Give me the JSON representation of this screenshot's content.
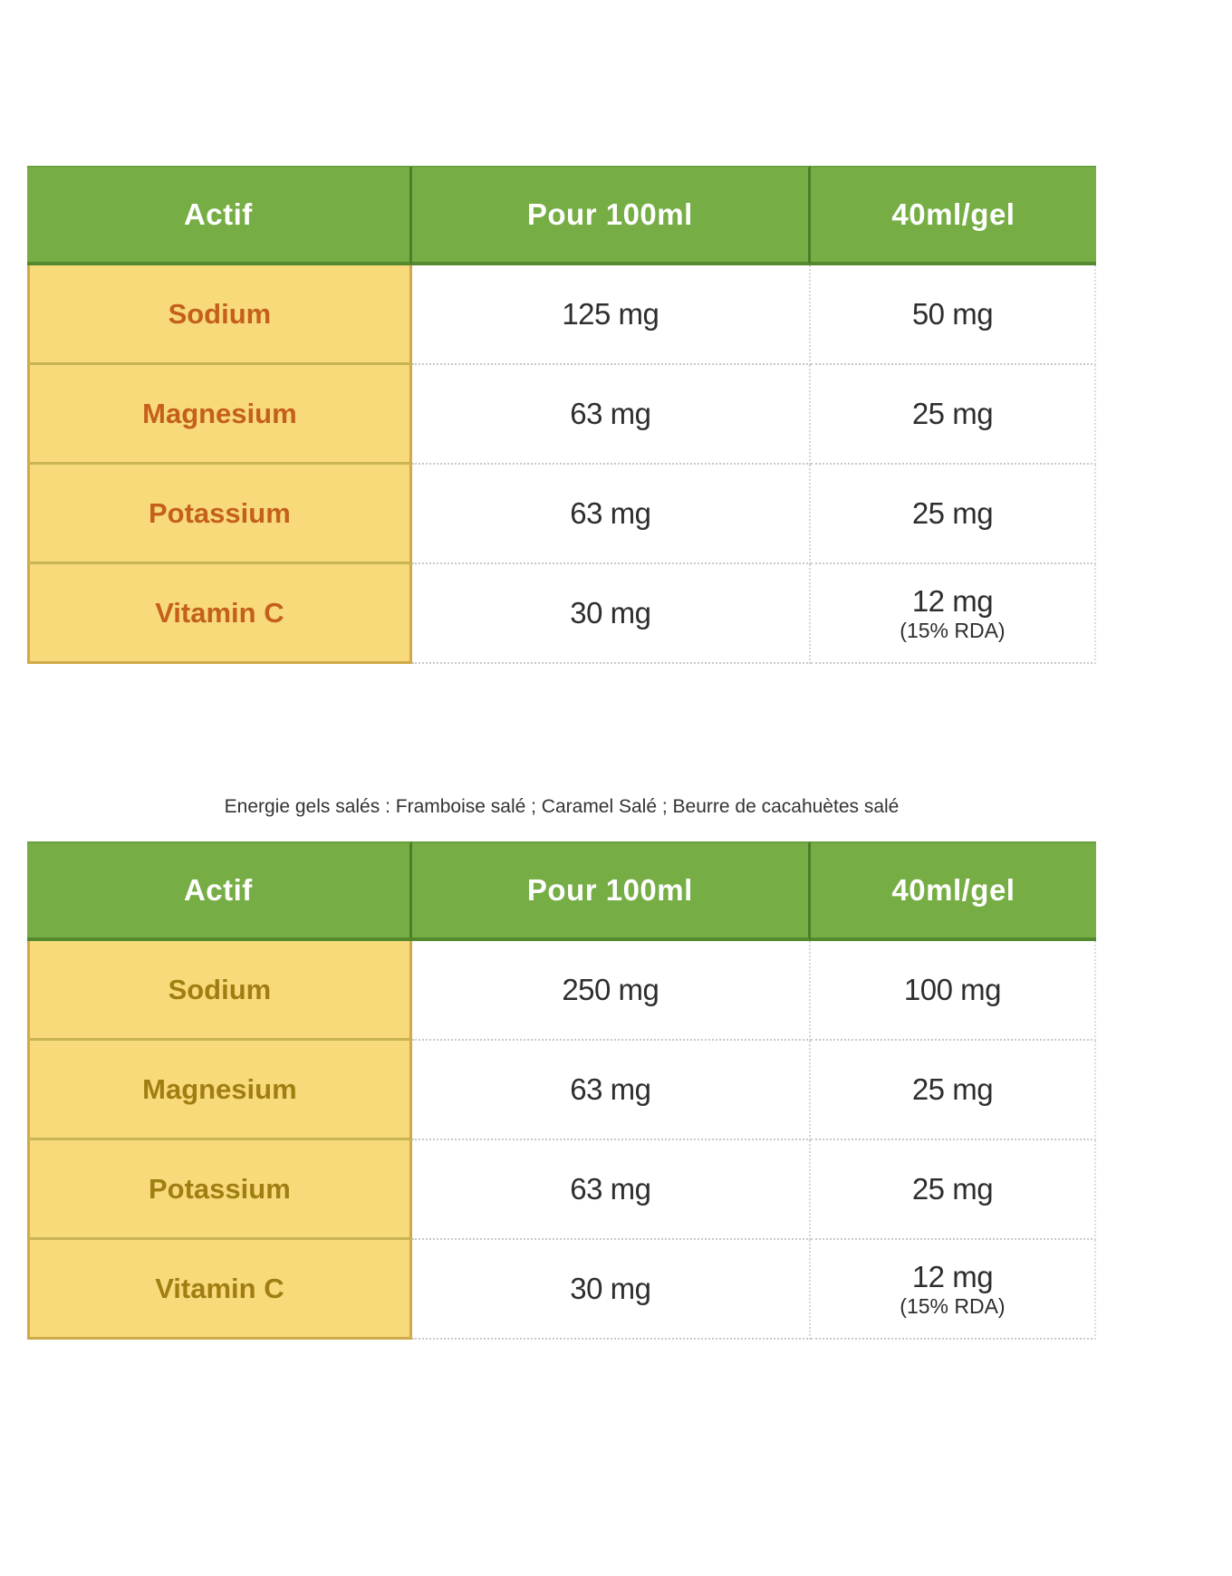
{
  "caption": "Energie gels salés : Framboise salé ; Caramel Salé ; Beurre de cacahuètes salé",
  "colors": {
    "header_bg": "#76ae45",
    "header_text": "#ffffff",
    "header_divider": "#4b7e27",
    "label_bg": "#f8da7a",
    "label_outer_border": "#cfa94a",
    "label_row_separator": "#c8b454",
    "table1_label_text": "#c4601a",
    "table2_label_text": "#a07e12",
    "value_text": "#2e2e2e",
    "dotted_separator": "#c9c9c9",
    "caption_text": "#333333"
  },
  "tables": [
    {
      "headers": [
        "Actif",
        "Pour 100ml",
        "40ml/gel"
      ],
      "rows": [
        {
          "label": "Sodium",
          "per100": "125 mg",
          "perGel": "50 mg",
          "note": ""
        },
        {
          "label": "Magnesium",
          "per100": "63 mg",
          "perGel": "25 mg",
          "note": ""
        },
        {
          "label": "Potassium",
          "per100": "63 mg",
          "perGel": "25 mg",
          "note": ""
        },
        {
          "label": "Vitamin C",
          "per100": "30 mg",
          "perGel": "12 mg",
          "note": "(15% RDA)"
        }
      ]
    },
    {
      "headers": [
        "Actif",
        "Pour 100ml",
        "40ml/gel"
      ],
      "rows": [
        {
          "label": "Sodium",
          "per100": "250 mg",
          "perGel": "100 mg",
          "note": ""
        },
        {
          "label": "Magnesium",
          "per100": "63 mg",
          "perGel": "25 mg",
          "note": ""
        },
        {
          "label": "Potassium",
          "per100": "63 mg",
          "perGel": "25 mg",
          "note": ""
        },
        {
          "label": "Vitamin C",
          "per100": "30 mg",
          "perGel": "12 mg",
          "note": "(15% RDA)"
        }
      ]
    }
  ]
}
